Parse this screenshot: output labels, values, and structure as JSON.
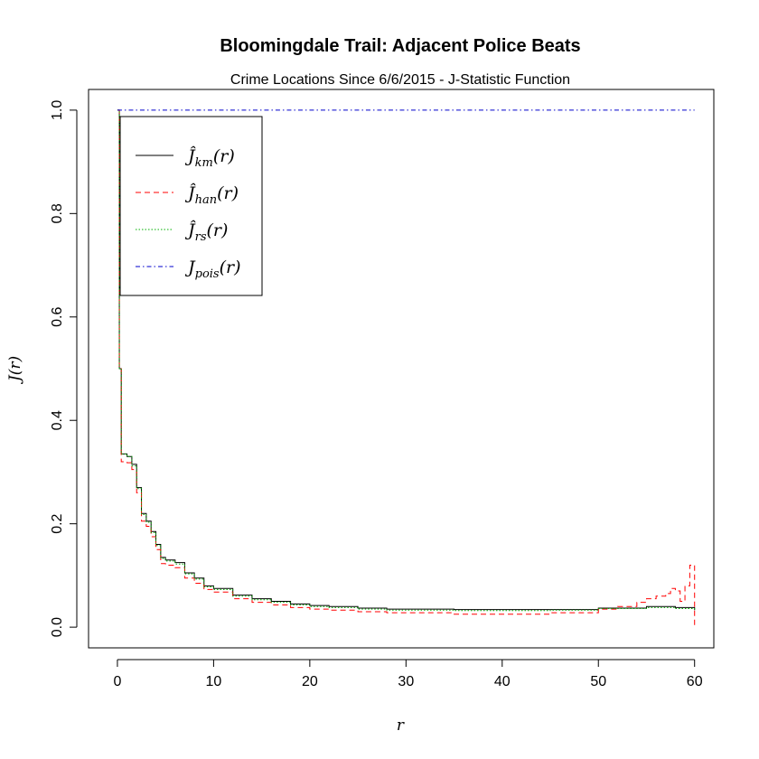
{
  "chart_data": {
    "type": "line",
    "title": "Bloomingdale Trail: Adjacent Police Beats",
    "subtitle": "Crime Locations Since 6/6/2015 - J-Statistic Function",
    "xlabel": "r",
    "ylabel": "J(r)",
    "xlim": [
      -3,
      62
    ],
    "ylim": [
      -0.04,
      1.04
    ],
    "xticks": [
      0,
      10,
      20,
      30,
      40,
      50,
      60
    ],
    "yticks": [
      0.0,
      0.2,
      0.4,
      0.6,
      0.8,
      1.0
    ],
    "xtick_labels": [
      "0",
      "10",
      "20",
      "30",
      "40",
      "50",
      "60"
    ],
    "ytick_labels": [
      "0.0",
      "0.2",
      "0.4",
      "0.6",
      "0.8",
      "1.0"
    ],
    "grid": false,
    "legend_position": "top-left",
    "series": [
      {
        "key": "km",
        "name": "Ĵkm(r)",
        "label_main": "Ĵ",
        "label_sub": "km",
        "label_tail": "(r)",
        "color": "#000000",
        "dash": "",
        "x": [
          0,
          0.2,
          0.4,
          1,
          1.5,
          2,
          2.5,
          3,
          3.5,
          4,
          4.5,
          5,
          6,
          7,
          8,
          9,
          10,
          12,
          14,
          16,
          18,
          20,
          22,
          25,
          28,
          30,
          35,
          40,
          45,
          50,
          55,
          58,
          60
        ],
        "y": [
          1.0,
          0.5,
          0.335,
          0.33,
          0.315,
          0.27,
          0.22,
          0.205,
          0.185,
          0.16,
          0.135,
          0.13,
          0.125,
          0.105,
          0.095,
          0.08,
          0.075,
          0.062,
          0.055,
          0.05,
          0.045,
          0.042,
          0.04,
          0.037,
          0.035,
          0.035,
          0.034,
          0.034,
          0.034,
          0.037,
          0.04,
          0.038,
          0.033
        ]
      },
      {
        "key": "han",
        "name": "Ĵhan(r)",
        "label_main": "Ĵ",
        "label_sub": "han",
        "label_tail": "(r)",
        "color": "#ff0000",
        "dash": "6,4",
        "x": [
          0,
          0.2,
          0.4,
          1,
          1.5,
          2,
          2.5,
          3,
          3.5,
          4,
          4.5,
          5,
          6,
          7,
          8,
          9,
          10,
          12,
          14,
          16,
          18,
          20,
          22,
          25,
          28,
          30,
          35,
          40,
          45,
          50,
          52,
          54,
          55,
          56,
          57,
          57.5,
          58,
          58.5,
          59,
          59.5,
          60
        ],
        "y": [
          1.0,
          0.5,
          0.32,
          0.318,
          0.305,
          0.26,
          0.205,
          0.195,
          0.175,
          0.15,
          0.123,
          0.12,
          0.115,
          0.095,
          0.085,
          0.073,
          0.068,
          0.055,
          0.048,
          0.043,
          0.038,
          0.035,
          0.033,
          0.03,
          0.028,
          0.028,
          0.025,
          0.025,
          0.028,
          0.035,
          0.04,
          0.048,
          0.055,
          0.06,
          0.065,
          0.075,
          0.07,
          0.05,
          0.08,
          0.12,
          0.0
        ]
      },
      {
        "key": "rs",
        "name": "Ĵrs(r)",
        "label_main": "Ĵ",
        "label_sub": "rs",
        "label_tail": "(r)",
        "color": "#00b000",
        "dash": "1.5,2",
        "x": [
          0,
          0.2,
          0.4,
          1,
          1.5,
          2,
          2.5,
          3,
          3.5,
          4,
          4.5,
          5,
          6,
          7,
          8,
          9,
          10,
          12,
          14,
          16,
          18,
          20,
          22,
          25,
          28,
          30,
          35,
          40,
          45,
          50,
          55,
          58,
          60
        ],
        "y": [
          1.0,
          0.5,
          0.335,
          0.33,
          0.312,
          0.268,
          0.218,
          0.203,
          0.183,
          0.158,
          0.133,
          0.128,
          0.122,
          0.103,
          0.093,
          0.078,
          0.073,
          0.06,
          0.053,
          0.048,
          0.043,
          0.04,
          0.038,
          0.035,
          0.033,
          0.033,
          0.032,
          0.032,
          0.033,
          0.036,
          0.038,
          0.036,
          0.032
        ]
      },
      {
        "key": "pois",
        "name": "Jpois(r)",
        "label_main": "J",
        "label_sub": "pois",
        "label_tail": "(r)",
        "color": "#0000cc",
        "dash": "5,3,1.5,3",
        "x": [
          0,
          60
        ],
        "y": [
          1.0,
          1.0
        ]
      }
    ]
  }
}
